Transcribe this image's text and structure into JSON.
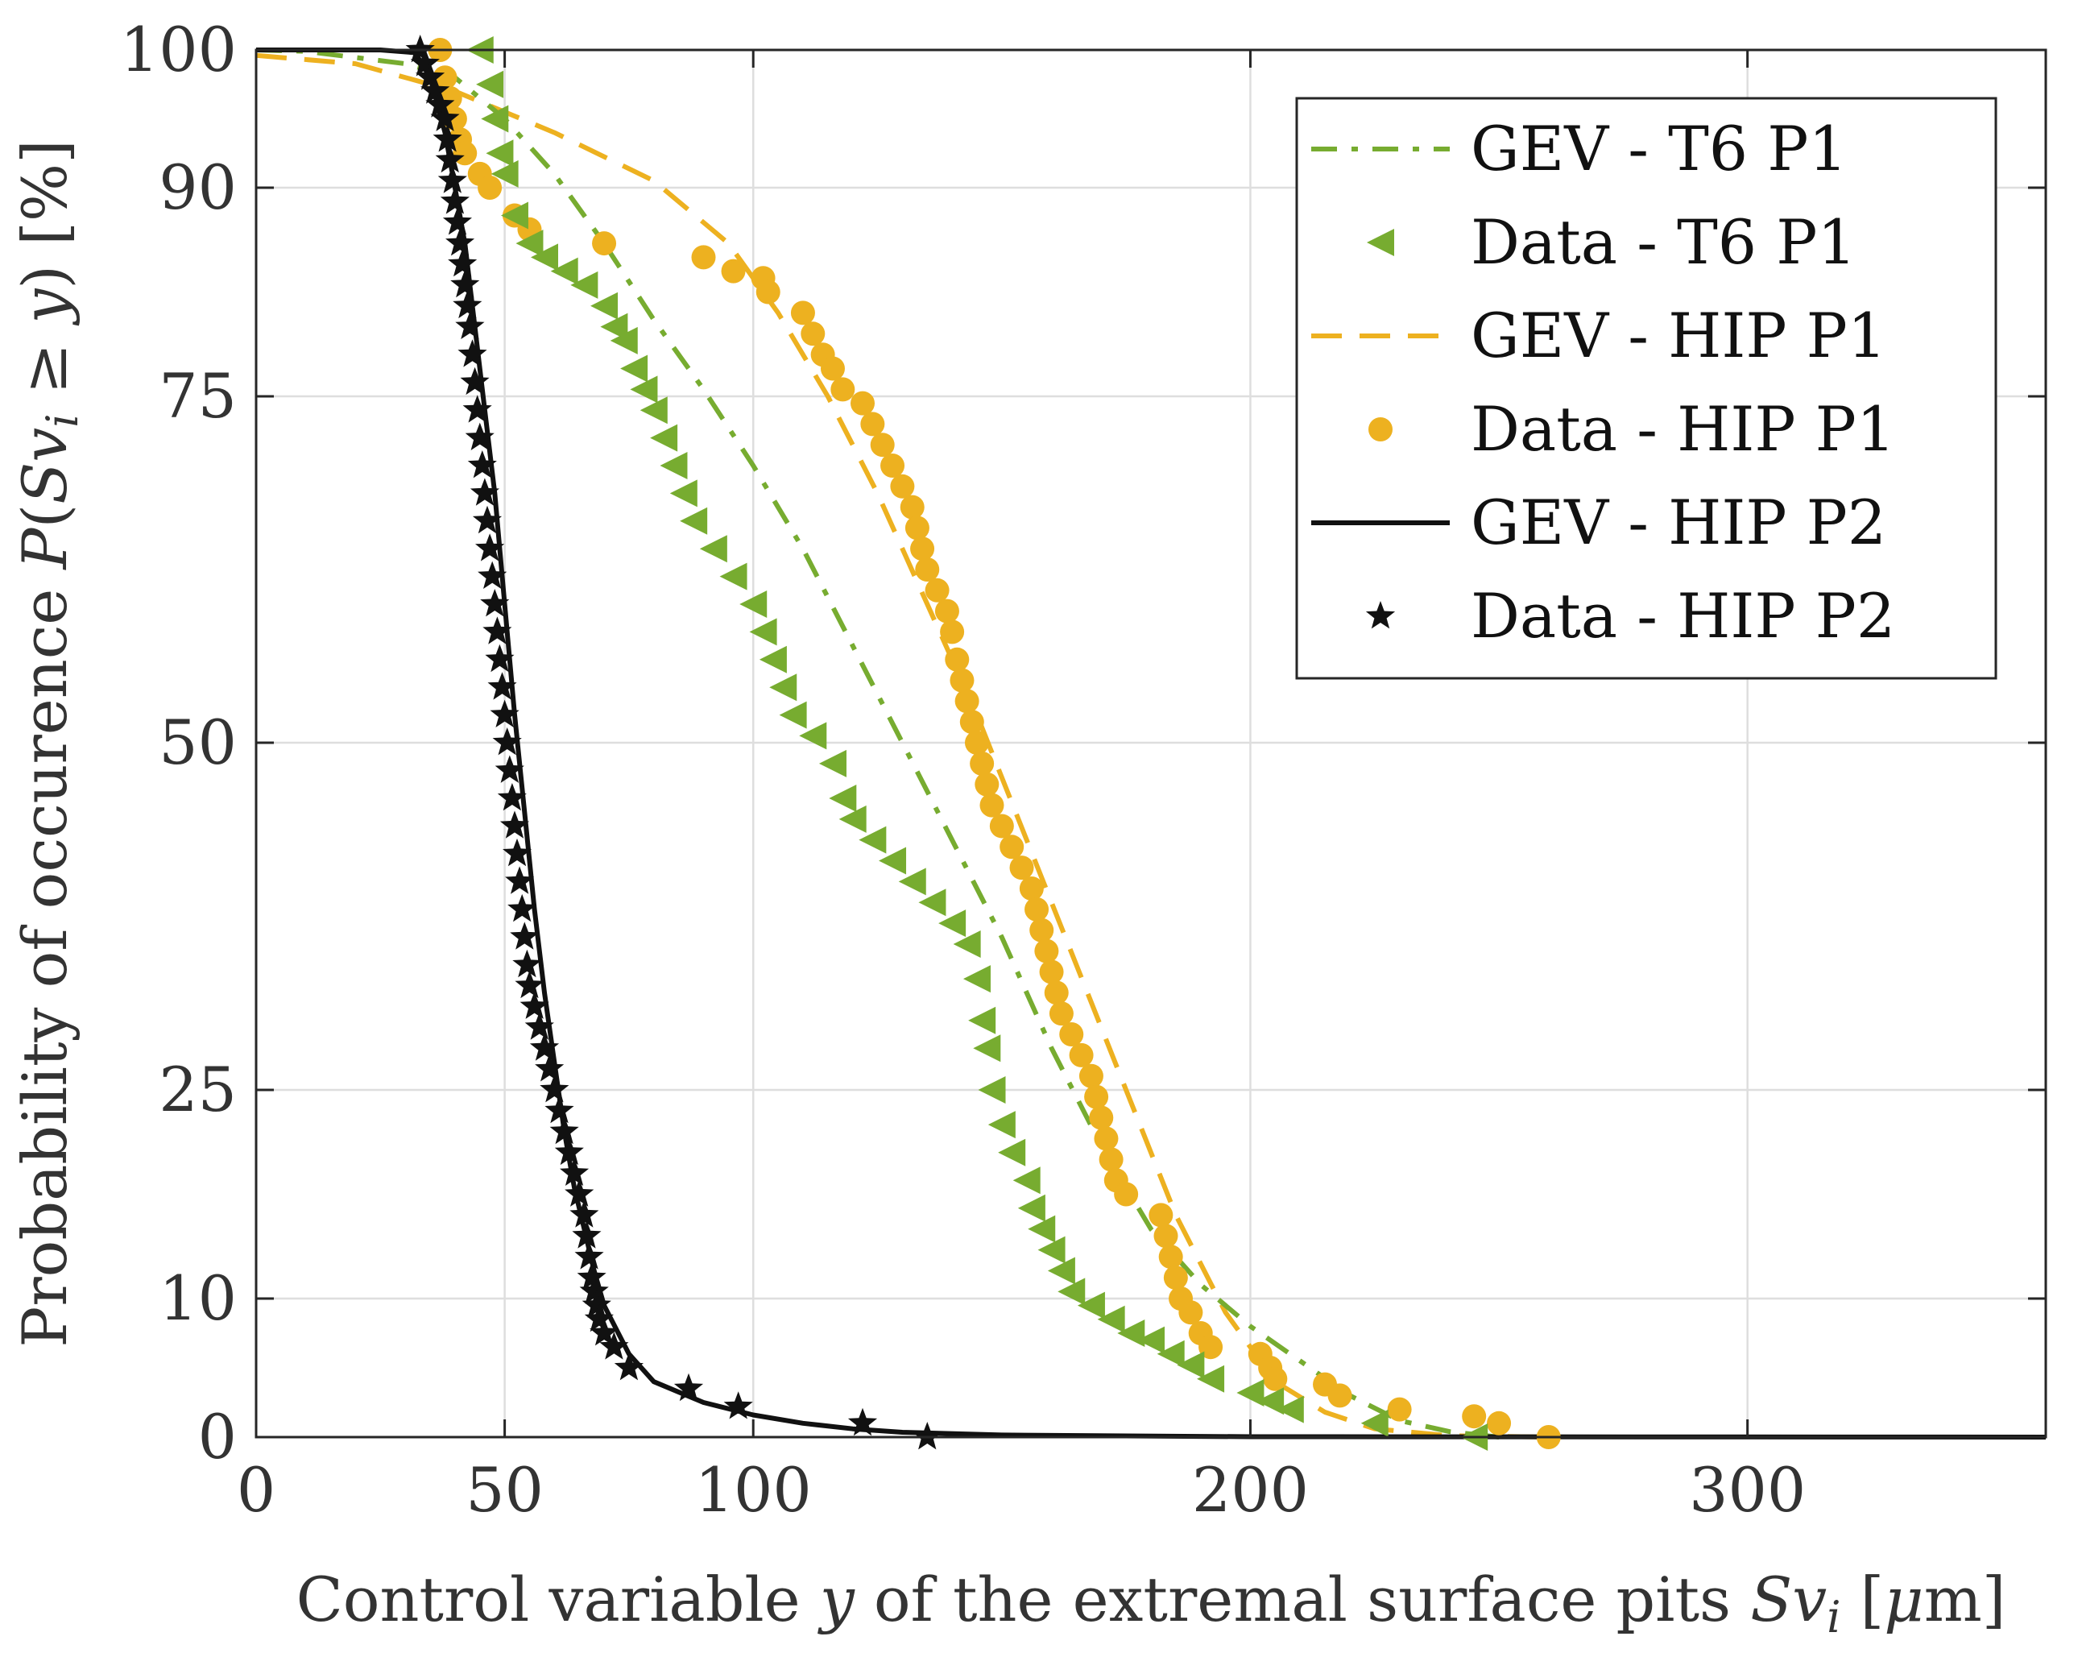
{
  "chart_data": {
    "type": "line",
    "title": "",
    "xlabel": "Control variable y of the extremal surface pits Sv_i [µm]",
    "xlabel_parts": {
      "prefix": "Control variable ",
      "var": "y",
      "middle": " of the extremal surface pits ",
      "sym": "Sv",
      "sub": "i",
      "unit_open": " [",
      "unit_mu": "μ",
      "unit_rest": "m]"
    },
    "ylabel": "Probability of occurence P(Sv_i ≥ y) [%]",
    "ylabel_parts": {
      "prefix": "Probability of occurence ",
      "func": "P",
      "open": "(",
      "sym": "Sv",
      "sub": "i",
      "rel": " ≥ ",
      "var": "y",
      "close": ")",
      "unit": " [%]"
    },
    "xlim": [
      0,
      360
    ],
    "ylim": [
      0,
      100
    ],
    "x_ticks": [
      0,
      50,
      100,
      200,
      300
    ],
    "x_tick_labels": [
      "0",
      "50",
      "100",
      "200",
      "300"
    ],
    "y_ticks": [
      0,
      10,
      25,
      50,
      75,
      90,
      100
    ],
    "y_tick_labels": [
      "0",
      "10",
      "25",
      "50",
      "75",
      "90",
      "100"
    ],
    "grid": true,
    "legend_position": "top-right",
    "series": [
      {
        "name": "GEV - T6 P1",
        "kind": "line",
        "style": "dashdot",
        "color": "#77ac30",
        "points": [
          [
            0,
            100
          ],
          [
            10,
            99.9
          ],
          [
            30,
            99
          ],
          [
            40,
            98
          ],
          [
            50,
            95
          ],
          [
            60,
            91
          ],
          [
            70,
            86
          ],
          [
            80,
            80.5
          ],
          [
            90,
            75.5
          ],
          [
            100,
            70
          ],
          [
            110,
            64
          ],
          [
            120,
            57
          ],
          [
            130,
            50
          ],
          [
            140,
            43
          ],
          [
            150,
            36
          ],
          [
            160,
            28
          ],
          [
            170,
            21
          ],
          [
            180,
            15
          ],
          [
            190,
            11
          ],
          [
            200,
            8
          ],
          [
            210,
            5.5
          ],
          [
            220,
            3
          ],
          [
            230,
            1.2
          ],
          [
            240,
            0.4
          ],
          [
            250,
            0
          ]
        ]
      },
      {
        "name": "Data - T6 P1",
        "kind": "scatter",
        "marker": "triangle-left",
        "color": "#77ac30",
        "points": [
          [
            45,
            100
          ],
          [
            47,
            97.5
          ],
          [
            48,
            95
          ],
          [
            49,
            92.5
          ],
          [
            50,
            91
          ],
          [
            52,
            88
          ],
          [
            55,
            86
          ],
          [
            58,
            85
          ],
          [
            62,
            84
          ],
          [
            66,
            83
          ],
          [
            70,
            81.5
          ],
          [
            72,
            80
          ],
          [
            74,
            79
          ],
          [
            76,
            77
          ],
          [
            78,
            75.5
          ],
          [
            80,
            74
          ],
          [
            82,
            72
          ],
          [
            84,
            70
          ],
          [
            86,
            68
          ],
          [
            88,
            66
          ],
          [
            92,
            64
          ],
          [
            96,
            62
          ],
          [
            100,
            60
          ],
          [
            102,
            58
          ],
          [
            104,
            56
          ],
          [
            106,
            54
          ],
          [
            108,
            52
          ],
          [
            112,
            50.5
          ],
          [
            116,
            48.5
          ],
          [
            118,
            46
          ],
          [
            120,
            44.5
          ],
          [
            124,
            43
          ],
          [
            128,
            41.5
          ],
          [
            132,
            40
          ],
          [
            136,
            38.5
          ],
          [
            140,
            37
          ],
          [
            143,
            35.5
          ],
          [
            145,
            33
          ],
          [
            146,
            30
          ],
          [
            147,
            28
          ],
          [
            148,
            25
          ],
          [
            150,
            22.5
          ],
          [
            152,
            20.5
          ],
          [
            155,
            18.5
          ],
          [
            156,
            16.5
          ],
          [
            158,
            15
          ],
          [
            160,
            13.5
          ],
          [
            162,
            12
          ],
          [
            164,
            10.5
          ],
          [
            168,
            9.5
          ],
          [
            172,
            8.5
          ],
          [
            176,
            7.5
          ],
          [
            180,
            7
          ],
          [
            184,
            6
          ],
          [
            188,
            5.2
          ],
          [
            192,
            4.2
          ],
          [
            200,
            3.2
          ],
          [
            204,
            2.6
          ],
          [
            208,
            2
          ],
          [
            225,
            1
          ],
          [
            245,
            0
          ]
        ]
      },
      {
        "name": "GEV - HIP P1",
        "kind": "line",
        "style": "dashed",
        "color": "#edb120",
        "points": [
          [
            0,
            99.6
          ],
          [
            20,
            99
          ],
          [
            40,
            97
          ],
          [
            60,
            94
          ],
          [
            80,
            90.5
          ],
          [
            95,
            86
          ],
          [
            105,
            81
          ],
          [
            115,
            75
          ],
          [
            125,
            68
          ],
          [
            135,
            60
          ],
          [
            145,
            52
          ],
          [
            155,
            43
          ],
          [
            165,
            34
          ],
          [
            175,
            25
          ],
          [
            185,
            16
          ],
          [
            195,
            9
          ],
          [
            205,
            4
          ],
          [
            215,
            1.8
          ],
          [
            225,
            0.6
          ],
          [
            240,
            0.1
          ],
          [
            260,
            0
          ]
        ]
      },
      {
        "name": "Data - HIP P1",
        "kind": "scatter",
        "marker": "dot",
        "color": "#edb120",
        "points": [
          [
            37,
            100
          ],
          [
            38,
            98
          ],
          [
            39,
            96.5
          ],
          [
            40,
            95
          ],
          [
            41,
            93.5
          ],
          [
            42,
            92.5
          ],
          [
            45,
            91
          ],
          [
            47,
            90
          ],
          [
            52,
            88
          ],
          [
            55,
            87
          ],
          [
            70,
            86
          ],
          [
            90,
            85
          ],
          [
            96,
            84
          ],
          [
            102,
            83.5
          ],
          [
            103,
            82.5
          ],
          [
            110,
            81
          ],
          [
            112,
            79.5
          ],
          [
            114,
            78
          ],
          [
            116,
            77
          ],
          [
            118,
            75.5
          ],
          [
            122,
            74.5
          ],
          [
            124,
            73
          ],
          [
            126,
            71.5
          ],
          [
            128,
            70
          ],
          [
            130,
            68.5
          ],
          [
            132,
            67
          ],
          [
            133,
            65.5
          ],
          [
            134,
            64
          ],
          [
            135,
            62.5
          ],
          [
            137,
            61
          ],
          [
            139,
            59.5
          ],
          [
            140,
            58
          ],
          [
            141,
            56
          ],
          [
            142,
            54.5
          ],
          [
            143,
            53
          ],
          [
            144,
            51.5
          ],
          [
            145,
            50
          ],
          [
            146,
            48.5
          ],
          [
            147,
            47
          ],
          [
            148,
            45.5
          ],
          [
            150,
            44
          ],
          [
            152,
            42.5
          ],
          [
            154,
            41
          ],
          [
            156,
            39.5
          ],
          [
            157,
            38
          ],
          [
            158,
            36.5
          ],
          [
            159,
            35
          ],
          [
            160,
            33.5
          ],
          [
            161,
            32
          ],
          [
            162,
            30.5
          ],
          [
            164,
            29
          ],
          [
            166,
            27.5
          ],
          [
            168,
            26
          ],
          [
            169,
            24.5
          ],
          [
            170,
            23
          ],
          [
            171,
            21.5
          ],
          [
            172,
            20
          ],
          [
            173,
            18.5
          ],
          [
            175,
            17.5
          ],
          [
            182,
            16
          ],
          [
            183,
            14.5
          ],
          [
            184,
            13
          ],
          [
            185,
            11.5
          ],
          [
            186,
            10
          ],
          [
            188,
            9
          ],
          [
            190,
            7.5
          ],
          [
            192,
            6.5
          ],
          [
            202,
            6
          ],
          [
            204,
            5
          ],
          [
            205,
            4.2
          ],
          [
            215,
            3.8
          ],
          [
            218,
            3
          ],
          [
            230,
            2
          ],
          [
            245,
            1.5
          ],
          [
            250,
            1
          ],
          [
            260,
            0
          ]
        ]
      },
      {
        "name": "GEV - HIP P2",
        "kind": "line",
        "style": "solid",
        "color": "#111111",
        "points": [
          [
            0,
            100
          ],
          [
            25,
            100
          ],
          [
            32,
            99.8
          ],
          [
            35,
            98
          ],
          [
            38,
            94
          ],
          [
            40,
            90
          ],
          [
            42,
            86
          ],
          [
            44,
            80
          ],
          [
            46,
            74
          ],
          [
            48,
            68
          ],
          [
            50,
            60
          ],
          [
            52,
            52
          ],
          [
            54,
            45
          ],
          [
            56,
            38
          ],
          [
            58,
            32
          ],
          [
            60,
            27
          ],
          [
            62,
            22
          ],
          [
            64,
            18
          ],
          [
            66,
            15
          ],
          [
            68,
            12
          ],
          [
            70,
            9.5
          ],
          [
            75,
            6
          ],
          [
            80,
            4
          ],
          [
            90,
            2.5
          ],
          [
            100,
            1.6
          ],
          [
            110,
            1.0
          ],
          [
            120,
            0.6
          ],
          [
            130,
            0.35
          ],
          [
            150,
            0.15
          ],
          [
            200,
            0.03
          ],
          [
            360,
            0
          ]
        ]
      },
      {
        "name": "Data - HIP P2",
        "kind": "scatter",
        "marker": "star",
        "color": "#111111",
        "points": [
          [
            33,
            100
          ],
          [
            34,
            99
          ],
          [
            35,
            98
          ],
          [
            36,
            97
          ],
          [
            37,
            96
          ],
          [
            38,
            95
          ],
          [
            38.5,
            93.5
          ],
          [
            39,
            92
          ],
          [
            39.5,
            90.5
          ],
          [
            40,
            89
          ],
          [
            40.5,
            87.5
          ],
          [
            41,
            86
          ],
          [
            41.5,
            84.5
          ],
          [
            42,
            83
          ],
          [
            42.5,
            81.5
          ],
          [
            43,
            80
          ],
          [
            43.5,
            78
          ],
          [
            44,
            76
          ],
          [
            44.5,
            74
          ],
          [
            45,
            72
          ],
          [
            45.5,
            70
          ],
          [
            46,
            68
          ],
          [
            46.5,
            66
          ],
          [
            47,
            64
          ],
          [
            47.5,
            62
          ],
          [
            48,
            60
          ],
          [
            48.5,
            58
          ],
          [
            49,
            56
          ],
          [
            49.5,
            54
          ],
          [
            50,
            52
          ],
          [
            50.5,
            50
          ],
          [
            51,
            48
          ],
          [
            51.5,
            46
          ],
          [
            52,
            44
          ],
          [
            52.5,
            42
          ],
          [
            53,
            40
          ],
          [
            53.5,
            38
          ],
          [
            54,
            36
          ],
          [
            54.5,
            34
          ],
          [
            55,
            32.5
          ],
          [
            56,
            31
          ],
          [
            57,
            29.5
          ],
          [
            58,
            28
          ],
          [
            59,
            26.5
          ],
          [
            60,
            25
          ],
          [
            61,
            23.5
          ],
          [
            62,
            22
          ],
          [
            63,
            20.5
          ],
          [
            64,
            19
          ],
          [
            65,
            17.5
          ],
          [
            66,
            16
          ],
          [
            66.5,
            14.5
          ],
          [
            67,
            13
          ],
          [
            67.5,
            11.5
          ],
          [
            68,
            10.5
          ],
          [
            68.5,
            9.5
          ],
          [
            69,
            8.5
          ],
          [
            70,
            7.5
          ],
          [
            72,
            6.5
          ],
          [
            75,
            5
          ],
          [
            87,
            3.5
          ],
          [
            97,
            2.2
          ],
          [
            122,
            1
          ],
          [
            135,
            0
          ]
        ]
      }
    ]
  }
}
